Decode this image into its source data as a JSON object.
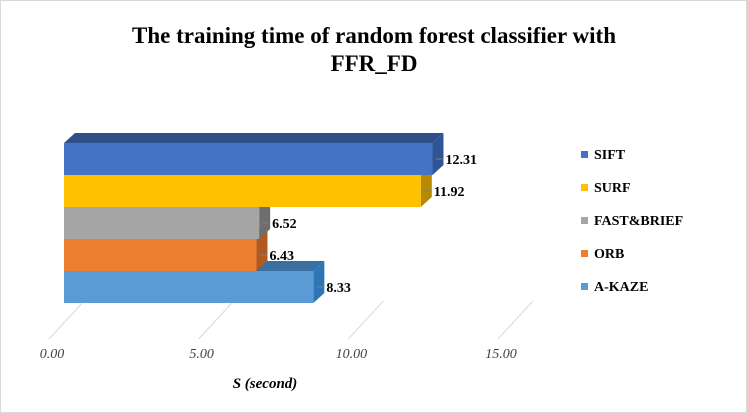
{
  "chart_data": {
    "type": "bar",
    "orientation": "horizontal",
    "style": "3d",
    "title_lines": [
      "The training time of random forest classifier with",
      "FFR_FD"
    ],
    "xlabel": "S (second)",
    "ylabel": "",
    "xlim": [
      0,
      15
    ],
    "x_ticks": [
      "0.00",
      "5.00",
      "10.00",
      "15.00"
    ],
    "grid": true,
    "legend_position": "right",
    "series": [
      {
        "name": "SIFT",
        "value": 12.31,
        "label": "12.31",
        "color": "#4472c4",
        "side": "#2f5597",
        "top": "#2e4f87"
      },
      {
        "name": "SURF",
        "value": 11.92,
        "label": "11.92",
        "color": "#ffc000",
        "side": "#b88a00",
        "top": "#c99a00"
      },
      {
        "name": "FAST&BRIEF",
        "value": 6.52,
        "label": "6.52",
        "color": "#a5a5a5",
        "side": "#6e6e6e",
        "top": "#7f7f7f"
      },
      {
        "name": "ORB",
        "value": 6.43,
        "label": "6.43",
        "color": "#ed7d31",
        "side": "#ae5a21",
        "top": "#c0622a"
      },
      {
        "name": "A-KAZE",
        "value": 8.33,
        "label": "8.33",
        "color": "#5b9bd5",
        "side": "#2e75b6",
        "top": "#3a6fa1"
      }
    ]
  }
}
